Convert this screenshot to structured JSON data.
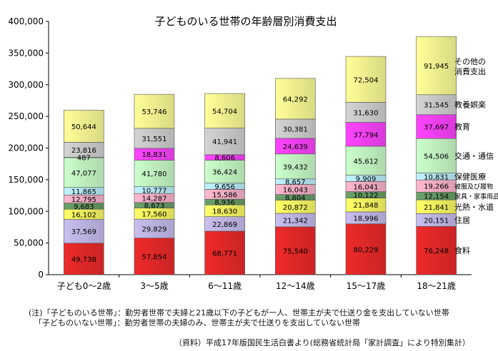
{
  "chart_data": {
    "type": "bar",
    "stacked": true,
    "title": "子どものいる世帯の年齢層別消費支出",
    "categories": [
      "子ども0～2歳",
      "3～5歳",
      "6～11歳",
      "12～14歳",
      "15～17歳",
      "18～21歳"
    ],
    "y_ticks": [
      "0",
      "50,000",
      "100,000",
      "150,000",
      "200,000",
      "250,000",
      "300,000",
      "350,000",
      "400,000"
    ],
    "ylim": [
      0,
      400000
    ],
    "grid": false,
    "series": [
      {
        "name": "食料",
        "values": [
          49738,
          57854,
          68771,
          75540,
          80229,
          76248
        ],
        "labels": [
          "49,738",
          "57,854",
          "68,771",
          "75,540",
          "80,229",
          "76,248"
        ],
        "color": "#ee2a2a"
      },
      {
        "name": "住居",
        "values": [
          37569,
          29829,
          22869,
          21342,
          18996,
          20151
        ],
        "labels": [
          "37,569",
          "29,829",
          "22,869",
          "21,342",
          "18,996",
          "20,151"
        ],
        "color": "#c9bff0"
      },
      {
        "name": "光熱・水道",
        "values": [
          16102,
          17560,
          18630,
          20872,
          21848,
          21841
        ],
        "labels": [
          "16,102",
          "17,560",
          "18,630",
          "20,872",
          "21,848",
          "21,841"
        ],
        "color": "#ffff66"
      },
      {
        "name": "家具・家事用品",
        "values": [
          9683,
          8673,
          8936,
          8804,
          10122,
          12154
        ],
        "labels": [
          "9,683",
          "8,673",
          "8,936",
          "8,804",
          "10,122",
          "12,154"
        ],
        "color": "#6aa06a"
      },
      {
        "name": "被服及び履物",
        "values": [
          12795,
          14287,
          15586,
          16043,
          16041,
          19266
        ],
        "labels": [
          "12,795",
          "14,287",
          "15,586",
          "16,043",
          "16,041",
          "19,266"
        ],
        "color": "#ffb8d0"
      },
      {
        "name": "保健医療",
        "values": [
          11865,
          10777,
          9656,
          8657,
          9909,
          10831
        ],
        "labels": [
          "11,865",
          "10,777",
          "9,656",
          "8,657",
          "9,909",
          "10,831"
        ],
        "color": "#bff4ff"
      },
      {
        "name": "交通・通信",
        "values": [
          47077,
          41780,
          36424,
          39432,
          45612,
          54506
        ],
        "labels": [
          "47,077",
          "41,780",
          "36,424",
          "39,432",
          "45,612",
          "54,506"
        ],
        "color": "#ccffcc"
      },
      {
        "name": "教育",
        "values": [
          487,
          18831,
          8606,
          24639,
          37794,
          37697
        ],
        "labels": [
          "487",
          "18,831",
          "8,606",
          "24,639",
          "37,794",
          "37,697"
        ],
        "color": "#ff44ff"
      },
      {
        "name": "教養娯楽",
        "values": [
          23816,
          31551,
          41941,
          30381,
          31630,
          31545
        ],
        "labels": [
          "23,816",
          "31,551",
          "41,941",
          "30,381",
          "31,630",
          "31,545"
        ],
        "color": "#d4d4d4"
      },
      {
        "name": "その他の消費支出",
        "values": [
          50644,
          53746,
          54704,
          64292,
          72504,
          91945
        ],
        "labels": [
          "50,644",
          "53,746",
          "54,704",
          "64,292",
          "72,504",
          "91,945"
        ],
        "color": "#ffff99"
      }
    ],
    "legend_labels": [
      {
        "text": "食料"
      },
      {
        "text": "住居"
      },
      {
        "text": "光熱・水道"
      },
      {
        "text": "家具・家事用品",
        "small": true
      },
      {
        "text": "被服及び履物",
        "small": true
      },
      {
        "text": "保健医療"
      },
      {
        "text": "交通・通信"
      },
      {
        "text": "教育"
      },
      {
        "text": "教養娯楽"
      },
      {
        "text": "その他の",
        "line2": "消費支出"
      }
    ]
  },
  "notes": {
    "line1": "(注)「子どものいる世帯」：勤労者世帯で夫婦と21歳以下の子どもが一人、世帯主が夫で仕送り金を支出していない世帯",
    "line2": "「子どものいない世帯」：勤労者世帯の夫婦のみ、世帯主が夫で仕送りを支出していない世帯",
    "source": "（資料）平成17年版国民生活白書より(総務省統計局「家計調査」により特別集計）"
  }
}
